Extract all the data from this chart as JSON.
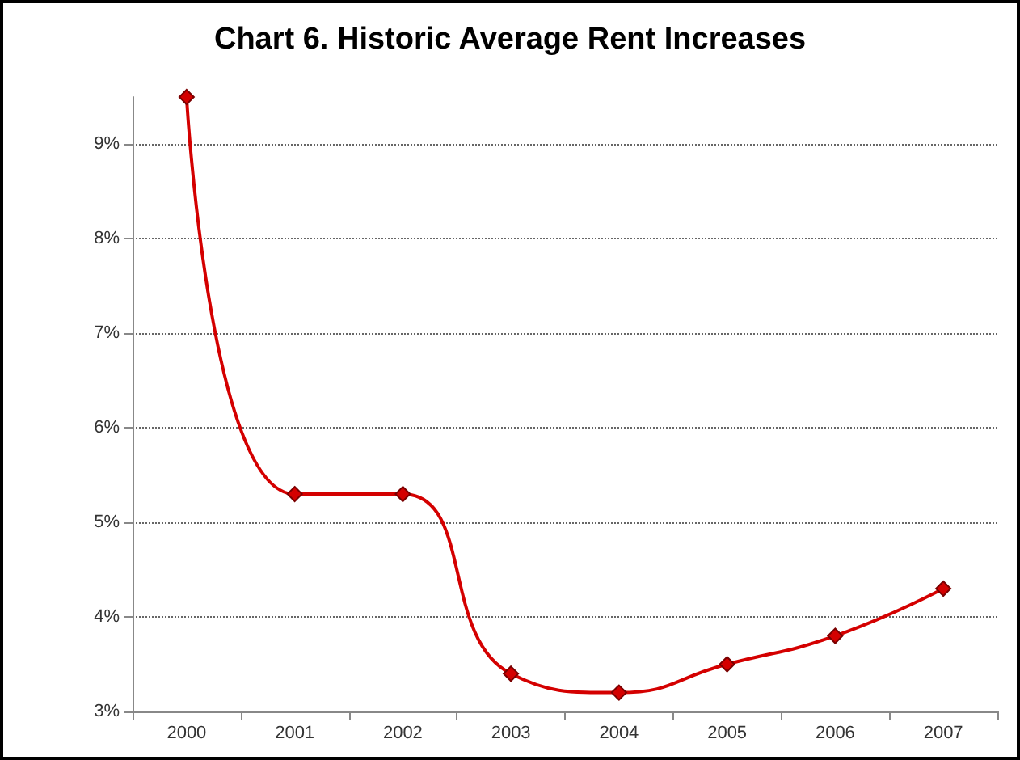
{
  "chart_data": {
    "type": "line",
    "title": "Chart 6. Historic Average Rent Increases",
    "categories": [
      "2000",
      "2001",
      "2002",
      "2003",
      "2004",
      "2005",
      "2006",
      "2007"
    ],
    "series": [
      {
        "color": "#d40000",
        "values": [
          9.5,
          5.3,
          5.3,
          3.4,
          3.2,
          3.5,
          3.8,
          4.3
        ]
      }
    ],
    "ylim": [
      3,
      9.5
    ],
    "yticks": [
      {
        "value": 3,
        "label": "3%"
      },
      {
        "value": 4,
        "label": "4%"
      },
      {
        "value": 5,
        "label": "5%"
      },
      {
        "value": 6,
        "label": "6%"
      },
      {
        "value": 7,
        "label": "7%"
      },
      {
        "value": 8,
        "label": "8%"
      },
      {
        "value": 9,
        "label": "9%"
      }
    ],
    "grid": "y",
    "marker": "diamond",
    "line_style": "solid"
  }
}
